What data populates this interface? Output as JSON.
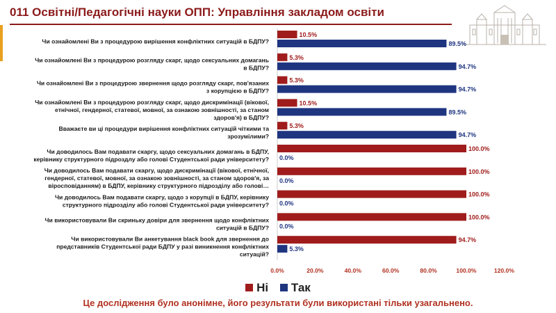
{
  "header": {
    "title": "011 Освітні/Педагогічні науки ОПП: Управління закладом освіти"
  },
  "colors": {
    "no": "#a01c1c",
    "yes": "#1f3580",
    "accent": "#8b1a1a",
    "footer": "#b03020"
  },
  "chart_data": {
    "type": "bar",
    "orientation": "horizontal",
    "categories": [
      [
        "Чи ознайомлені Ви з процедурою вирішення конфліктних ситуацій в БДПУ?"
      ],
      [
        "Чи ознайомлені Ви з процедурою розгляду скарг, щодо сексуальних домагань",
        "в БДПУ?"
      ],
      [
        "Чи ознайомлені Ви з процедурою  звернення щодо розгляду скарг, пов'язаних",
        "з корупцією в БДПУ?"
      ],
      [
        "Чи ознайомлені Ви з процедурою розгляду скарг, щодо дискримінації (вікової,",
        "етнічної, гендерної, статевої, мовної, за ознакою зовнішності, за станом",
        "здоров'я) в БДПУ?"
      ],
      [
        "Вважаєте ви ці процедури вирішення конфліктних ситуацій  чіткими та",
        "зрозумілими?"
      ],
      [
        "Чи доводилось Вам подавати скаргу, щодо  сексуальних домагань в БДПУ,",
        "керівнику структурного підроздлу або голові Студентської ради університету?"
      ],
      [
        "Чи доводилось Вам подавати скаргу, щодо дискримінації (вікової, етнічної,",
        "гендерної, статевої, мовної, за  ознакою зовнішності, за станом здоров'я, за",
        "віросповіданням) в БДПУ, керівнику структурного підрозділу або голові…"
      ],
      [
        "Чи доводилось Вам подавати скаргу, щодо з корупції в БДПУ, керівнику",
        "структурного підрозділу або голові Студентської ради університету?"
      ],
      [
        "Чи використовували Ви скриньку довіри для звернення щодо конфліктних",
        "ситуацій в БДПУ?"
      ],
      [
        "Чи використовували Ви анкетування black book для звернення до",
        "представників Студентської ради БДПУ у разі виникнення конфліктних",
        "ситуацій?"
      ]
    ],
    "series": [
      {
        "name": "Ні",
        "values": [
          10.5,
          5.3,
          5.3,
          10.5,
          5.3,
          100.0,
          100.0,
          100.0,
          100.0,
          94.7
        ],
        "color": "#a01c1c"
      },
      {
        "name": "Так",
        "values": [
          89.5,
          94.7,
          94.7,
          89.5,
          94.7,
          0.0,
          0.0,
          0.0,
          0.0,
          5.3
        ],
        "color": "#1f3580"
      }
    ],
    "data_labels": {
      "Ні": [
        "10.5%",
        "5.3%",
        "5.3%",
        "10.5%",
        "5.3%",
        "100.0%",
        "100.0%",
        "100.0%",
        "100.0%",
        "94.7%"
      ],
      "Так": [
        "89.5%",
        "94.7%",
        "94.7%",
        "89.5%",
        "94.7%",
        "0.0%",
        "0.0%",
        "0.0%",
        "0.0%",
        "5.3%"
      ]
    },
    "xlim": [
      0,
      120
    ],
    "x_ticks": [
      "0.0%",
      "20.0%",
      "40.0%",
      "60.0%",
      "80.0%",
      "100.0%",
      "120.0%"
    ],
    "grid": false,
    "legend_position": "bottom"
  },
  "legend": {
    "no_label": "Ні",
    "yes_label": "Так"
  },
  "footer": {
    "note": "Це дослідження було  анонімне, його результати були  використані тільки узагальнено."
  }
}
